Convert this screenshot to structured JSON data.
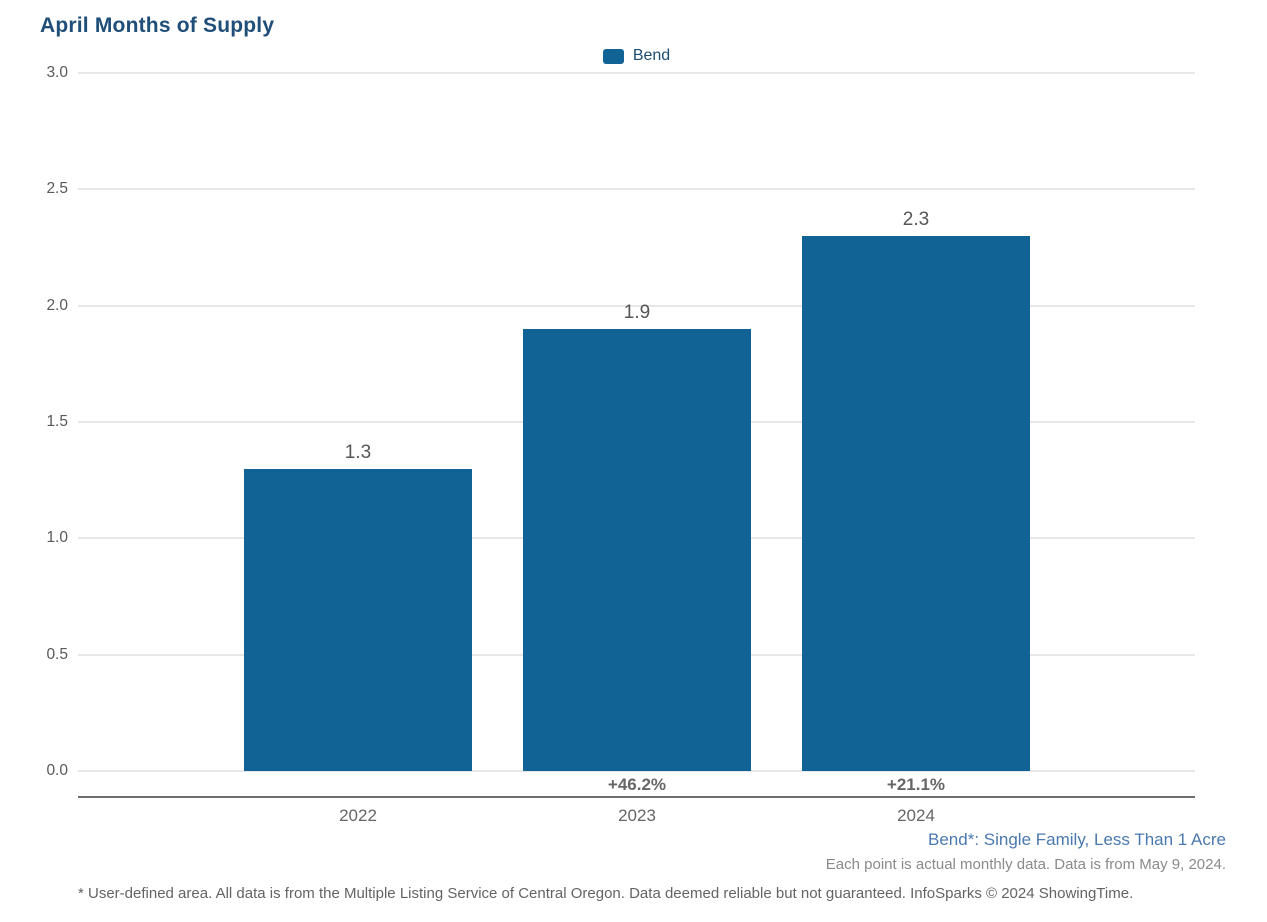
{
  "title": "April Months of Supply",
  "legend": {
    "label": "Bend"
  },
  "chart_data": {
    "type": "bar",
    "title": "April Months of Supply",
    "categories": [
      "2022",
      "2023",
      "2024"
    ],
    "series": [
      {
        "name": "Bend",
        "values": [
          1.3,
          1.9,
          2.3
        ]
      }
    ],
    "value_labels": [
      "1.3",
      "1.9",
      "2.3"
    ],
    "pct_change_labels": [
      null,
      "+46.2%",
      "+21.1%"
    ],
    "xlabel": "",
    "ylabel": "",
    "ylim": [
      0.0,
      3.0
    ],
    "ytick_labels": [
      "0.0",
      "0.5",
      "1.0",
      "1.5",
      "2.0",
      "2.5",
      "3.0"
    ],
    "grid": true,
    "legend_position": "top-center"
  },
  "annotations": {
    "series_definition": "Bend*: Single Family, Less Than 1 Acre",
    "data_note": "Each point is actual monthly data. Data is from May 9, 2024.",
    "footer": "* User-defined area. All data is from the Multiple Listing Service of Central Oregon. Data deemed reliable but not guaranteed. InfoSparks © 2024 ShowingTime."
  },
  "colors": {
    "bar": "#116396",
    "title": "#1F4E79",
    "legend_label": "#1D4D71",
    "annotation_blue": "#4A79AE",
    "axis_text": "#595959",
    "gridline": "#E7E7E7",
    "axis_line": "#6E6E6E"
  }
}
